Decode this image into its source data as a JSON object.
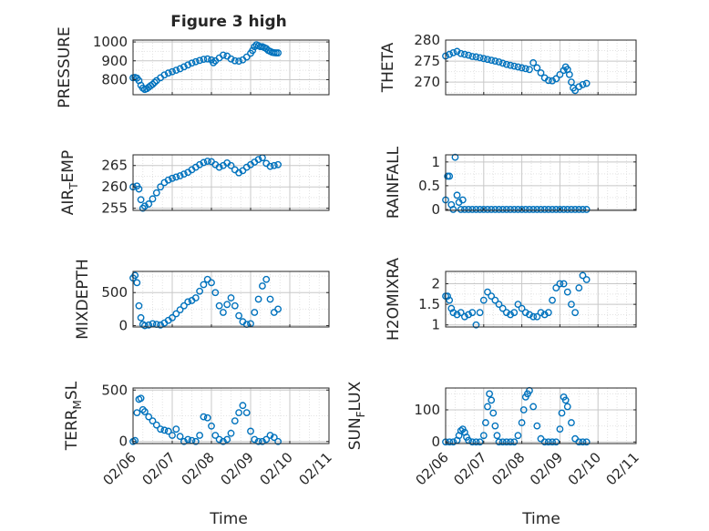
{
  "figure": {
    "title": "Figure 3 high",
    "xlabel_left": "Time",
    "xlabel_right": "Time"
  },
  "colors": {
    "marker": "#0072BD",
    "axis": "#262626",
    "grid": "#d0d0d0"
  },
  "x_ticks": [
    "02/06",
    "02/07",
    "02/08",
    "02/09",
    "02/10",
    "02/11"
  ],
  "chart_data": [
    {
      "id": "pressure",
      "type": "scatter",
      "ylabel": "PRESSURE",
      "ylim": [
        720,
        1010
      ],
      "yticks": [
        800,
        900,
        1000
      ],
      "x": [
        0.0,
        0.05,
        0.1,
        0.15,
        0.2,
        0.25,
        0.3,
        0.35,
        0.4,
        0.45,
        0.5,
        0.55,
        0.6,
        0.7,
        0.8,
        0.9,
        1.0,
        1.1,
        1.2,
        1.3,
        1.4,
        1.5,
        1.6,
        1.7,
        1.8,
        1.9,
        2.0,
        2.05,
        2.1,
        2.2,
        2.3,
        2.4,
        2.5,
        2.6,
        2.7,
        2.8,
        2.9,
        3.0,
        3.05,
        3.1,
        3.15,
        3.2,
        3.25,
        3.3,
        3.35,
        3.4,
        3.45,
        3.5,
        3.55,
        3.6,
        3.65,
        3.7
      ],
      "y": [
        810,
        812,
        808,
        795,
        770,
        755,
        748,
        752,
        760,
        768,
        775,
        785,
        795,
        810,
        825,
        835,
        842,
        850,
        858,
        868,
        878,
        888,
        895,
        902,
        908,
        910,
        905,
        890,
        900,
        915,
        930,
        925,
        910,
        900,
        898,
        905,
        920,
        940,
        955,
        975,
        985,
        980,
        975,
        975,
        970,
        965,
        955,
        950,
        945,
        943,
        942,
        942
      ]
    },
    {
      "id": "theta",
      "type": "scatter",
      "ylabel": "THETA",
      "ylim": [
        267,
        280
      ],
      "yticks": [
        270,
        275,
        280
      ],
      "x": [
        0.0,
        0.1,
        0.2,
        0.3,
        0.4,
        0.5,
        0.6,
        0.7,
        0.8,
        0.9,
        1.0,
        1.1,
        1.2,
        1.3,
        1.4,
        1.5,
        1.6,
        1.7,
        1.8,
        1.9,
        2.0,
        2.1,
        2.2,
        2.3,
        2.4,
        2.5,
        2.6,
        2.7,
        2.8,
        2.9,
        3.0,
        3.1,
        3.15,
        3.2,
        3.25,
        3.3,
        3.35,
        3.4,
        3.5,
        3.6,
        3.7
      ],
      "y": [
        276.2,
        276.6,
        277.0,
        277.3,
        276.8,
        276.6,
        276.4,
        276.1,
        276.0,
        275.8,
        275.6,
        275.4,
        275.2,
        275.0,
        274.8,
        274.5,
        274.2,
        274.0,
        273.8,
        273.6,
        273.4,
        273.2,
        273.0,
        274.6,
        273.4,
        272.2,
        271.0,
        270.4,
        270.3,
        270.8,
        271.8,
        272.8,
        273.6,
        273.0,
        271.8,
        270.0,
        268.6,
        268.0,
        268.9,
        269.4,
        269.7
      ]
    },
    {
      "id": "air_temp",
      "type": "scatter",
      "ylabel": "AIR_TEMP",
      "ylim": [
        254.5,
        267.5
      ],
      "yticks": [
        255,
        260,
        265
      ],
      "x": [
        0.0,
        0.1,
        0.15,
        0.2,
        0.25,
        0.3,
        0.4,
        0.5,
        0.6,
        0.7,
        0.8,
        0.9,
        1.0,
        1.1,
        1.2,
        1.3,
        1.4,
        1.5,
        1.6,
        1.7,
        1.8,
        1.9,
        2.0,
        2.1,
        2.2,
        2.3,
        2.4,
        2.5,
        2.6,
        2.7,
        2.8,
        2.9,
        3.0,
        3.1,
        3.2,
        3.3,
        3.4,
        3.5,
        3.6,
        3.7
      ],
      "y": [
        260.0,
        260.2,
        259.5,
        257.0,
        255.0,
        255.5,
        256.0,
        257.2,
        258.6,
        260.0,
        261.0,
        261.6,
        262.0,
        262.3,
        262.6,
        263.0,
        263.4,
        264.0,
        264.6,
        265.2,
        265.7,
        266.0,
        265.9,
        265.2,
        264.6,
        265.0,
        265.6,
        265.0,
        264.0,
        263.3,
        263.8,
        264.6,
        265.2,
        265.8,
        266.4,
        266.8,
        265.5,
        264.8,
        265.0,
        265.2
      ]
    },
    {
      "id": "rainfall",
      "type": "scatter",
      "ylabel": "RAINFALL",
      "ylim": [
        -0.02,
        1.15
      ],
      "yticks": [
        0,
        0.5,
        1
      ],
      "x": [
        0.0,
        0.05,
        0.1,
        0.15,
        0.2,
        0.25,
        0.3,
        0.35,
        0.4,
        0.45,
        0.5,
        0.6,
        0.7,
        0.8,
        0.9,
        1.0,
        1.1,
        1.2,
        1.3,
        1.4,
        1.5,
        1.6,
        1.7,
        1.8,
        1.9,
        2.0,
        2.1,
        2.2,
        2.3,
        2.4,
        2.5,
        2.6,
        2.7,
        2.8,
        2.9,
        3.0,
        3.1,
        3.2,
        3.3,
        3.4,
        3.5,
        3.6,
        3.7
      ],
      "y": [
        0.2,
        0.7,
        0.7,
        0.1,
        0.0,
        1.1,
        0.3,
        0.15,
        0.0,
        0.2,
        0.0,
        0.0,
        0.0,
        0.0,
        0.0,
        0.0,
        0.0,
        0.0,
        0.0,
        0.0,
        0.0,
        0.0,
        0.0,
        0.0,
        0.0,
        0.0,
        0.0,
        0.0,
        0.0,
        0.0,
        0.0,
        0.0,
        0.0,
        0.0,
        0.0,
        0.0,
        0.0,
        0.0,
        0.0,
        0.0,
        0.0,
        0.0,
        0.0
      ]
    },
    {
      "id": "mixdepth",
      "type": "scatter",
      "ylabel": "MIXDEPTH",
      "ylim": [
        -20,
        820
      ],
      "yticks": [
        0,
        500
      ],
      "x": [
        0.0,
        0.05,
        0.1,
        0.15,
        0.2,
        0.25,
        0.3,
        0.4,
        0.5,
        0.6,
        0.7,
        0.8,
        0.9,
        1.0,
        1.1,
        1.2,
        1.3,
        1.4,
        1.5,
        1.6,
        1.7,
        1.8,
        1.9,
        2.0,
        2.1,
        2.2,
        2.3,
        2.4,
        2.5,
        2.6,
        2.7,
        2.8,
        2.9,
        3.0,
        3.1,
        3.2,
        3.3,
        3.4,
        3.5,
        3.6,
        3.7
      ],
      "y": [
        720,
        760,
        650,
        300,
        120,
        20,
        0,
        10,
        30,
        20,
        10,
        40,
        80,
        120,
        180,
        240,
        300,
        360,
        380,
        420,
        520,
        620,
        700,
        650,
        500,
        300,
        200,
        320,
        420,
        300,
        150,
        60,
        20,
        30,
        200,
        400,
        600,
        700,
        400,
        200,
        250
      ]
    },
    {
      "id": "h2omixra",
      "type": "scatter",
      "ylabel": "H2OMIXRA",
      "ylim": [
        0.95,
        2.3
      ],
      "yticks": [
        1,
        1.5,
        2
      ],
      "x": [
        0.0,
        0.05,
        0.1,
        0.15,
        0.2,
        0.3,
        0.4,
        0.5,
        0.6,
        0.7,
        0.8,
        0.9,
        1.0,
        1.1,
        1.2,
        1.3,
        1.4,
        1.5,
        1.6,
        1.7,
        1.8,
        1.9,
        2.0,
        2.1,
        2.2,
        2.3,
        2.4,
        2.5,
        2.6,
        2.7,
        2.8,
        2.9,
        3.0,
        3.1,
        3.2,
        3.3,
        3.4,
        3.5,
        3.6,
        3.7
      ],
      "y": [
        1.7,
        1.7,
        1.6,
        1.4,
        1.3,
        1.25,
        1.3,
        1.2,
        1.25,
        1.3,
        1.0,
        1.3,
        1.6,
        1.8,
        1.7,
        1.6,
        1.5,
        1.4,
        1.3,
        1.25,
        1.3,
        1.5,
        1.4,
        1.3,
        1.25,
        1.2,
        1.2,
        1.3,
        1.25,
        1.3,
        1.6,
        1.9,
        2.0,
        2.0,
        1.8,
        1.5,
        1.3,
        1.9,
        2.2,
        2.1
      ]
    },
    {
      "id": "terr_msl",
      "type": "scatter",
      "ylabel": "TERR_MSL",
      "ylim": [
        -20,
        520
      ],
      "yticks": [
        0,
        500
      ],
      "x": [
        0.0,
        0.05,
        0.1,
        0.15,
        0.2,
        0.25,
        0.3,
        0.4,
        0.5,
        0.6,
        0.7,
        0.8,
        0.9,
        1.0,
        1.1,
        1.2,
        1.3,
        1.4,
        1.5,
        1.6,
        1.7,
        1.8,
        1.9,
        2.0,
        2.1,
        2.2,
        2.3,
        2.4,
        2.5,
        2.6,
        2.7,
        2.8,
        2.9,
        3.0,
        3.1,
        3.2,
        3.3,
        3.4,
        3.5,
        3.6,
        3.7
      ],
      "y": [
        0,
        10,
        280,
        410,
        420,
        310,
        290,
        240,
        200,
        160,
        120,
        110,
        100,
        60,
        120,
        50,
        0,
        20,
        10,
        0,
        60,
        240,
        230,
        150,
        60,
        20,
        0,
        20,
        80,
        200,
        280,
        350,
        280,
        100,
        20,
        0,
        0,
        20,
        60,
        40,
        0
      ]
    },
    {
      "id": "sun_flux",
      "type": "scatter",
      "ylabel": "SUN_FLUX",
      "ylim": [
        -5,
        168
      ],
      "yticks": [
        0,
        100
      ],
      "x": [
        0.0,
        0.1,
        0.2,
        0.3,
        0.35,
        0.4,
        0.45,
        0.5,
        0.55,
        0.6,
        0.7,
        0.8,
        0.9,
        1.0,
        1.05,
        1.1,
        1.15,
        1.2,
        1.25,
        1.3,
        1.35,
        1.4,
        1.5,
        1.6,
        1.7,
        1.8,
        1.9,
        2.0,
        2.05,
        2.1,
        2.15,
        2.2,
        2.3,
        2.4,
        2.5,
        2.6,
        2.7,
        2.8,
        2.9,
        3.0,
        3.05,
        3.1,
        3.15,
        3.2,
        3.3,
        3.4,
        3.5,
        3.6,
        3.7
      ],
      "y": [
        0,
        0,
        0,
        5,
        20,
        35,
        40,
        30,
        15,
        5,
        0,
        0,
        0,
        20,
        60,
        110,
        150,
        130,
        90,
        50,
        20,
        0,
        0,
        0,
        0,
        0,
        20,
        60,
        100,
        140,
        150,
        160,
        110,
        50,
        10,
        0,
        0,
        0,
        0,
        40,
        90,
        140,
        130,
        110,
        60,
        10,
        0,
        0,
        0
      ]
    }
  ]
}
